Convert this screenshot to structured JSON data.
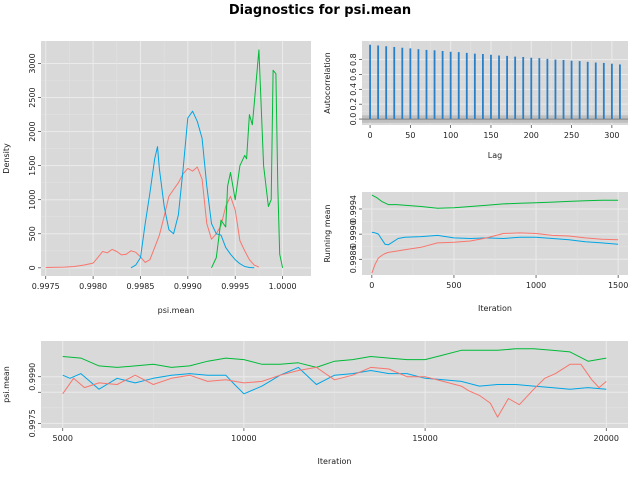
{
  "figure": {
    "title": "Diagnostics for psi.mean"
  },
  "colors": {
    "panel_bg": "#d9d9d9",
    "grid_major": "#ebebeb",
    "grid_minor": "#e2e2e2",
    "chain1": "#f8766d",
    "chain2": "#00ba38",
    "chain3": "#00a5e5",
    "acf": "#2a7fc9"
  },
  "chart_data": [
    {
      "id": "density",
      "type": "line",
      "xlabel": "psi.mean",
      "ylabel": "Density",
      "xlim": [
        0.99745,
        1.0003
      ],
      "ylim": [
        -120,
        3330
      ],
      "xticks": [
        0.9975,
        0.998,
        0.9985,
        0.999,
        0.9995,
        1.0
      ],
      "xtick_labels": [
        "0.9975",
        "0.9980",
        "0.9985",
        "0.9990",
        "0.9995",
        "1.0000"
      ],
      "yticks": [
        0,
        500,
        1000,
        1500,
        2000,
        2500,
        3000
      ],
      "ytick_labels": [
        "0",
        "500",
        "1000",
        "1500",
        "2000",
        "2500",
        "3000"
      ],
      "series": [
        {
          "color_key": "chain1",
          "x": [
            0.9975,
            0.9977,
            0.9978,
            0.9979,
            0.998,
            0.99805,
            0.9981,
            0.99815,
            0.9982,
            0.99825,
            0.9983,
            0.99835,
            0.9984,
            0.99845,
            0.9985,
            0.99855,
            0.9986,
            0.99865,
            0.9987,
            0.99875,
            0.9988,
            0.99885,
            0.9989,
            0.99895,
            0.999,
            0.99905,
            0.9991,
            0.99915,
            0.9992,
            0.99925,
            0.9993,
            0.99935,
            0.9994,
            0.99945,
            0.9995,
            0.99955,
            0.9996,
            0.99965,
            0.9997,
            0.99975
          ],
          "y": [
            5,
            10,
            20,
            40,
            70,
            150,
            240,
            220,
            270,
            240,
            190,
            200,
            250,
            230,
            160,
            80,
            120,
            300,
            480,
            760,
            1050,
            1150,
            1250,
            1380,
            1460,
            1420,
            1480,
            1300,
            650,
            420,
            500,
            620,
            900,
            1050,
            850,
            400,
            250,
            120,
            40,
            10
          ]
        },
        {
          "color_key": "chain3",
          "x": [
            0.9984,
            0.99845,
            0.9985,
            0.99855,
            0.9986,
            0.99865,
            0.99868,
            0.9987,
            0.99875,
            0.9988,
            0.99885,
            0.9989,
            0.99895,
            0.999,
            0.99905,
            0.9991,
            0.99915,
            0.9992,
            0.99925,
            0.9993,
            0.99935,
            0.9994,
            0.99945,
            0.9995,
            0.99955,
            0.9996,
            0.99965,
            0.9997
          ],
          "y": [
            0,
            40,
            150,
            650,
            1100,
            1600,
            1780,
            1450,
            900,
            560,
            500,
            780,
            1450,
            2200,
            2300,
            2150,
            1900,
            1200,
            650,
            500,
            480,
            300,
            200,
            120,
            60,
            20,
            5,
            0
          ]
        },
        {
          "color_key": "chain2",
          "x": [
            0.99925,
            0.9993,
            0.99935,
            0.9994,
            0.99942,
            0.99945,
            0.9995,
            0.99955,
            0.9996,
            0.99962,
            0.99965,
            0.99968,
            0.9997,
            0.99975,
            0.9998,
            0.99985,
            0.99988,
            0.9999,
            0.99993,
            0.99995,
            0.99997,
            1.0
          ],
          "y": [
            0,
            150,
            700,
            600,
            1200,
            1400,
            1000,
            1500,
            1650,
            1600,
            2250,
            2100,
            2400,
            3200,
            1500,
            900,
            1000,
            2900,
            2850,
            1200,
            200,
            0
          ]
        }
      ]
    },
    {
      "id": "autocorrelation",
      "type": "bar",
      "xlabel": "Lag",
      "ylabel": "Autocorrelation",
      "xlim": [
        -10,
        320
      ],
      "ylim": [
        -0.08,
        1.05
      ],
      "xticks": [
        0,
        50,
        100,
        150,
        200,
        250,
        300
      ],
      "xtick_labels": [
        "0",
        "50",
        "100",
        "150",
        "200",
        "250",
        "300"
      ],
      "yticks": [
        0.0,
        0.2,
        0.4,
        0.6,
        0.8
      ],
      "ytick_labels": [
        "0.0",
        "0.2",
        "0.4",
        "0.6",
        "0.8"
      ],
      "lags": [
        0,
        10,
        20,
        30,
        40,
        50,
        60,
        70,
        80,
        90,
        100,
        110,
        120,
        130,
        140,
        150,
        160,
        170,
        180,
        190,
        200,
        210,
        220,
        230,
        240,
        250,
        260,
        270,
        280,
        290,
        300,
        310
      ],
      "values": [
        1.0,
        0.99,
        0.98,
        0.97,
        0.96,
        0.95,
        0.94,
        0.93,
        0.925,
        0.915,
        0.905,
        0.9,
        0.89,
        0.88,
        0.875,
        0.865,
        0.855,
        0.85,
        0.84,
        0.835,
        0.825,
        0.82,
        0.81,
        0.8,
        0.795,
        0.785,
        0.78,
        0.77,
        0.76,
        0.755,
        0.745,
        0.735
      ],
      "ci": [
        -0.05,
        0.05
      ]
    },
    {
      "id": "running_mean",
      "type": "line",
      "xlabel": "Iteration",
      "ylabel": "Running mean",
      "xlim": [
        -60,
        1560
      ],
      "ylim": [
        0.99835,
        0.99967
      ],
      "xticks": [
        0,
        500,
        1000,
        1500
      ],
      "xtick_labels": [
        "0",
        "500",
        "1000",
        "1500"
      ],
      "yticks": [
        0.9986,
        0.999,
        0.9994
      ],
      "ytick_labels": [
        "0.9986",
        "0.9990",
        "0.9994"
      ],
      "series": [
        {
          "color_key": "chain2",
          "x": [
            0,
            30,
            60,
            100,
            150,
            200,
            300,
            400,
            500,
            600,
            700,
            800,
            900,
            1000,
            1100,
            1200,
            1300,
            1400,
            1500
          ],
          "y": [
            0.99962,
            0.99958,
            0.99952,
            0.99947,
            0.99947,
            0.99946,
            0.99944,
            0.99941,
            0.99942,
            0.99944,
            0.99946,
            0.99948,
            0.99949,
            0.9995,
            0.99951,
            0.99952,
            0.99953,
            0.99954,
            0.99954
          ]
        },
        {
          "color_key": "chain3",
          "x": [
            0,
            20,
            40,
            60,
            80,
            100,
            130,
            160,
            200,
            300,
            400,
            500,
            600,
            700,
            800,
            900,
            1000,
            1100,
            1200,
            1300,
            1400,
            1500
          ],
          "y": [
            0.99903,
            0.99902,
            0.999,
            0.99892,
            0.99884,
            0.99883,
            0.99888,
            0.99893,
            0.99895,
            0.99896,
            0.99898,
            0.99894,
            0.99893,
            0.99894,
            0.99893,
            0.99895,
            0.99895,
            0.99893,
            0.99891,
            0.99888,
            0.99886,
            0.99884
          ]
        },
        {
          "color_key": "chain1",
          "x": [
            0,
            10,
            20,
            40,
            60,
            80,
            100,
            150,
            200,
            300,
            400,
            500,
            600,
            700,
            800,
            900,
            1000,
            1100,
            1200,
            1300,
            1400,
            1500
          ],
          "y": [
            0.99838,
            0.99845,
            0.99852,
            0.99862,
            0.99866,
            0.99869,
            0.99871,
            0.99873,
            0.99875,
            0.99879,
            0.99886,
            0.99887,
            0.99889,
            0.99894,
            0.99901,
            0.99902,
            0.99901,
            0.99898,
            0.99897,
            0.99894,
            0.99892,
            0.99891
          ]
        }
      ]
    },
    {
      "id": "trace",
      "type": "line",
      "xlabel": "Iteration",
      "ylabel": "psi.mean",
      "xlim": [
        4400,
        20600
      ],
      "ylim": [
        0.99735,
        1.00015
      ],
      "xticks": [
        5000,
        10000,
        15000,
        20000
      ],
      "xtick_labels": [
        "5000",
        "10000",
        "15000",
        "20000"
      ],
      "yticks": [
        0.9975,
        0.9985,
        0.999
      ],
      "ytick_labels": [
        "0.9975",
        "",
        "0.9990"
      ],
      "series": [
        {
          "color_key": "chain2",
          "x": [
            5000,
            5500,
            6000,
            6500,
            7000,
            7500,
            8000,
            8500,
            9000,
            9500,
            10000,
            10500,
            11000,
            11500,
            12000,
            12500,
            13000,
            13500,
            14000,
            14500,
            15000,
            15500,
            16000,
            16500,
            17000,
            17500,
            18000,
            18500,
            19000,
            19500,
            20000
          ],
          "y": [
            0.99965,
            0.9996,
            0.99935,
            0.9993,
            0.99935,
            0.9994,
            0.9993,
            0.99935,
            0.9995,
            0.9996,
            0.99955,
            0.9994,
            0.9994,
            0.99945,
            0.9993,
            0.9995,
            0.99955,
            0.99965,
            0.9996,
            0.99955,
            0.99955,
            0.9997,
            0.99985,
            0.99985,
            0.99985,
            0.9999,
            0.9999,
            0.99985,
            0.9998,
            0.9995,
            0.9996
          ]
        },
        {
          "color_key": "chain3",
          "x": [
            5000,
            5200,
            5500,
            6000,
            6500,
            7000,
            7500,
            8000,
            8500,
            9000,
            9500,
            9700,
            10000,
            10500,
            11000,
            11500,
            12000,
            12500,
            13000,
            13500,
            14000,
            14500,
            15000,
            15500,
            16000,
            16500,
            17000,
            17500,
            18000,
            18500,
            19000,
            19500,
            20000
          ],
          "y": [
            0.99905,
            0.99895,
            0.9991,
            0.9986,
            0.99895,
            0.9988,
            0.99895,
            0.99905,
            0.9991,
            0.99905,
            0.99905,
            0.9988,
            0.99845,
            0.9987,
            0.99905,
            0.9993,
            0.99875,
            0.99905,
            0.9991,
            0.9992,
            0.9991,
            0.9991,
            0.99895,
            0.9989,
            0.99885,
            0.9987,
            0.99875,
            0.99875,
            0.9987,
            0.99865,
            0.9986,
            0.99865,
            0.9986
          ]
        },
        {
          "color_key": "chain1",
          "x": [
            5000,
            5300,
            5600,
            6000,
            6500,
            7000,
            7500,
            8000,
            8500,
            9000,
            9500,
            10000,
            10500,
            11000,
            11500,
            12000,
            12500,
            13000,
            13500,
            14000,
            14500,
            15000,
            15500,
            16000,
            16200,
            16500,
            16800,
            17000,
            17300,
            17600,
            18000,
            18300,
            18600,
            19000,
            19300,
            19600,
            19800,
            20000
          ],
          "y": [
            0.99845,
            0.99895,
            0.99865,
            0.9988,
            0.99875,
            0.99905,
            0.99875,
            0.99895,
            0.99905,
            0.99885,
            0.9989,
            0.9988,
            0.99885,
            0.99905,
            0.9992,
            0.9993,
            0.9989,
            0.99905,
            0.9993,
            0.99925,
            0.999,
            0.999,
            0.99885,
            0.9987,
            0.99855,
            0.9984,
            0.99815,
            0.9977,
            0.9983,
            0.9981,
            0.9986,
            0.99895,
            0.9991,
            0.9994,
            0.9994,
            0.9989,
            0.99865,
            0.99885
          ]
        }
      ]
    }
  ]
}
